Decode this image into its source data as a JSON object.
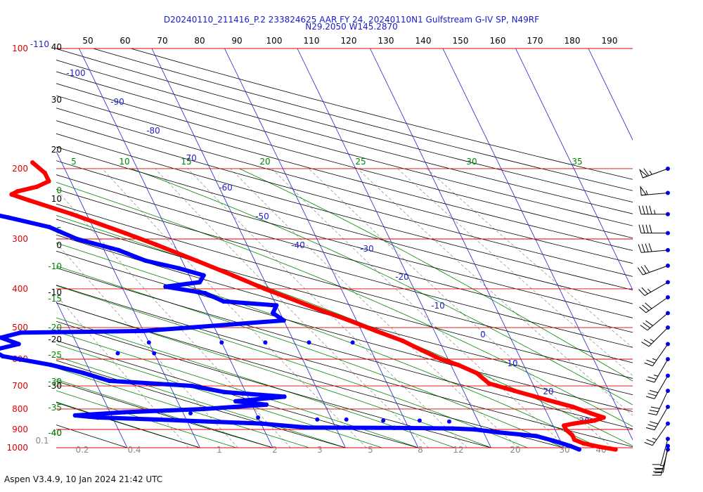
{
  "title": "D20240110_211416_P.2 233824625 AAR FY 24, 20240110N1 Gulfstream G-IV SP, N49RF",
  "subtitle": "N29.2050 W145.2870",
  "footer": "Aspen V3.4.9, 10 Jan 2024  21:42 UTC",
  "chart_data": {
    "type": "skew-t log-p",
    "y_axis_label": "Pressure (hPa)",
    "pressure_levels": [
      {
        "p": 100,
        "label": "100"
      },
      {
        "p": 200,
        "label": "200"
      },
      {
        "p": 300,
        "label": "300"
      },
      {
        "p": 400,
        "label": "400"
      },
      {
        "p": 500,
        "label": "500"
      },
      {
        "p": 600,
        "label": "600"
      },
      {
        "p": 700,
        "label": "700"
      },
      {
        "p": 800,
        "label": "800"
      },
      {
        "p": 900,
        "label": "900"
      },
      {
        "p": 1000,
        "label": "1000"
      }
    ],
    "top_pressure_tag": "-110",
    "temperature_labels": [
      -100,
      -90,
      -80,
      -70,
      -60,
      -50,
      -40,
      -30,
      -20,
      -10,
      0,
      10,
      20,
      30
    ],
    "theta_top_labels": [
      50,
      60,
      70,
      80,
      90,
      100,
      110,
      120,
      130,
      140,
      150,
      160,
      170,
      180,
      190
    ],
    "left_scale_labels": [
      "40",
      "30",
      "20",
      "10",
      "0",
      "-10",
      "-20",
      "-30",
      "-40"
    ],
    "theta_e_labels": [
      "0",
      "-5",
      "-10",
      "-15",
      "-20",
      "-25",
      "-30",
      "-35",
      "-40"
    ],
    "theta_w_top_labels": [
      "5",
      "10",
      "15",
      "20",
      "25",
      "30",
      "35"
    ],
    "mixing_ratio_labels": [
      0.2,
      0.4,
      1,
      2,
      3,
      5,
      8,
      12,
      20,
      30,
      40
    ],
    "mixing_ratio_extra_label": "0.1",
    "series": [
      {
        "name": "Temperature",
        "color": "#ff0000",
        "points": [
          {
            "p": 1010,
            "t": 17
          },
          {
            "p": 995,
            "t": 15
          },
          {
            "p": 975,
            "t": 13
          },
          {
            "p": 955,
            "t": 12
          },
          {
            "p": 930,
            "t": 12
          },
          {
            "p": 900,
            "t": 11.5
          },
          {
            "p": 880,
            "t": 11.5
          },
          {
            "p": 870,
            "t": 13
          },
          {
            "p": 855,
            "t": 16
          },
          {
            "p": 840,
            "t": 17.5
          },
          {
            "p": 820,
            "t": 16
          },
          {
            "p": 790,
            "t": 14
          },
          {
            "p": 760,
            "t": 11
          },
          {
            "p": 720,
            "t": 7
          },
          {
            "p": 690,
            "t": 4
          },
          {
            "p": 650,
            "t": 3
          },
          {
            "p": 620,
            "t": 1
          },
          {
            "p": 600,
            "t": -1
          },
          {
            "p": 570,
            "t": -3
          },
          {
            "p": 540,
            "t": -5
          },
          {
            "p": 510,
            "t": -8
          },
          {
            "p": 480,
            "t": -11
          },
          {
            "p": 450,
            "t": -14.5
          },
          {
            "p": 420,
            "t": -18
          },
          {
            "p": 400,
            "t": -20.5
          },
          {
            "p": 370,
            "t": -24
          },
          {
            "p": 340,
            "t": -28
          },
          {
            "p": 310,
            "t": -32.5
          },
          {
            "p": 290,
            "t": -36
          },
          {
            "p": 260,
            "t": -42
          },
          {
            "p": 240,
            "t": -47
          },
          {
            "p": 232,
            "t": -49
          },
          {
            "p": 228,
            "t": -48
          },
          {
            "p": 222,
            "t": -45
          },
          {
            "p": 215,
            "t": -43
          },
          {
            "p": 205,
            "t": -43
          },
          {
            "p": 193,
            "t": -44
          }
        ]
      },
      {
        "name": "Dewpoint",
        "color": "#0000ff",
        "points": [
          {
            "p": 1010,
            "t": 12
          },
          {
            "p": 990,
            "t": 11
          },
          {
            "p": 960,
            "t": 9
          },
          {
            "p": 935,
            "t": 7
          },
          {
            "p": 915,
            "t": 2
          },
          {
            "p": 900,
            "t": -1
          },
          {
            "p": 895,
            "t": -4
          },
          {
            "p": 892,
            "t": -12
          },
          {
            "p": 890,
            "t": -24
          },
          {
            "p": 870,
            "t": -30
          },
          {
            "p": 850,
            "t": -44
          },
          {
            "p": 840,
            "t": -52
          },
          {
            "p": 830,
            "t": -55
          },
          {
            "p": 815,
            "t": -48
          },
          {
            "p": 800,
            "t": -37
          },
          {
            "p": 780,
            "t": -28
          },
          {
            "p": 765,
            "t": -32
          },
          {
            "p": 745,
            "t": -25
          },
          {
            "p": 725,
            "t": -33
          },
          {
            "p": 700,
            "t": -37
          },
          {
            "p": 680,
            "t": -48
          },
          {
            "p": 650,
            "t": -51
          },
          {
            "p": 620,
            "t": -55
          },
          {
            "p": 590,
            "t": -61
          },
          {
            "p": 570,
            "t": -62
          },
          {
            "p": 550,
            "t": -58
          },
          {
            "p": 530,
            "t": -60
          },
          {
            "p": 515,
            "t": -57
          },
          {
            "p": 510,
            "t": -40
          },
          {
            "p": 495,
            "t": -30
          },
          {
            "p": 480,
            "t": -20
          },
          {
            "p": 460,
            "t": -21
          },
          {
            "p": 440,
            "t": -20
          },
          {
            "p": 430,
            "t": -27
          },
          {
            "p": 410,
            "t": -29
          },
          {
            "p": 395,
            "t": -34
          },
          {
            "p": 385,
            "t": -29
          },
          {
            "p": 370,
            "t": -28
          },
          {
            "p": 355,
            "t": -31
          },
          {
            "p": 340,
            "t": -35
          },
          {
            "p": 320,
            "t": -38
          },
          {
            "p": 300,
            "t": -43
          },
          {
            "p": 280,
            "t": -46
          },
          {
            "p": 265,
            "t": -51
          },
          {
            "p": 252,
            "t": -56
          },
          {
            "p": 244,
            "t": -62
          },
          {
            "p": 240,
            "t": -70
          }
        ]
      }
    ],
    "dewpoint_scatter": [
      {
        "p": 545,
        "t": -40
      },
      {
        "p": 545,
        "t": -30
      },
      {
        "p": 545,
        "t": -24
      },
      {
        "p": 545,
        "t": -18
      },
      {
        "p": 545,
        "t": -12
      },
      {
        "p": 580,
        "t": -45
      },
      {
        "p": 580,
        "t": -40
      },
      {
        "p": 820,
        "t": -39
      },
      {
        "p": 840,
        "t": -30
      },
      {
        "p": 850,
        "t": -22
      },
      {
        "p": 850,
        "t": -18
      },
      {
        "p": 855,
        "t": -13
      },
      {
        "p": 855,
        "t": -8
      },
      {
        "p": 860,
        "t": -4
      }
    ],
    "wind_barbs": [
      {
        "p": 200,
        "dir": 250,
        "speed": 65
      },
      {
        "p": 230,
        "dir": 265,
        "speed": 55
      },
      {
        "p": 260,
        "dir": 270,
        "speed": 45
      },
      {
        "p": 290,
        "dir": 270,
        "speed": 40
      },
      {
        "p": 320,
        "dir": 265,
        "speed": 40
      },
      {
        "p": 350,
        "dir": 250,
        "speed": 30
      },
      {
        "p": 385,
        "dir": 240,
        "speed": 25
      },
      {
        "p": 420,
        "dir": 235,
        "speed": 30
      },
      {
        "p": 460,
        "dir": 230,
        "speed": 30
      },
      {
        "p": 500,
        "dir": 225,
        "speed": 25
      },
      {
        "p": 550,
        "dir": 215,
        "speed": 25
      },
      {
        "p": 600,
        "dir": 210,
        "speed": 25
      },
      {
        "p": 660,
        "dir": 210,
        "speed": 30
      },
      {
        "p": 720,
        "dir": 205,
        "speed": 30
      },
      {
        "p": 790,
        "dir": 210,
        "speed": 30
      },
      {
        "p": 870,
        "dir": 215,
        "speed": 25
      },
      {
        "p": 950,
        "dir": 195,
        "speed": 10
      },
      {
        "p": 990,
        "dir": 190,
        "speed": 25
      },
      {
        "p": 1010,
        "dir": 195,
        "speed": 30
      }
    ],
    "colors": {
      "isobar": "#dd0000",
      "isotherm": "#2222cc",
      "dry_adiabat": "#000000",
      "moist_adiabat": "#008800",
      "mixing_ratio": "#888888",
      "temperature_trace": "#ff0000",
      "dewpoint_trace": "#0000ff"
    }
  }
}
